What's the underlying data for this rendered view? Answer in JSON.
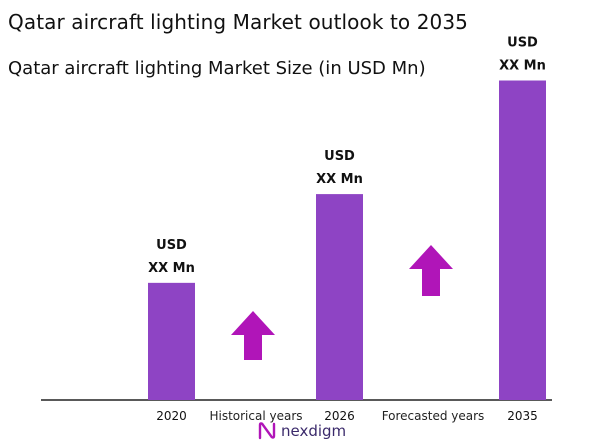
{
  "title": "Qatar aircraft lighting Market outlook to 2035",
  "subtitle": "Qatar aircraft lighting Market Size (in USD Mn)",
  "colors": {
    "bar": "#8e44c4",
    "arrow": "#b015b8",
    "axis": "#222222"
  },
  "chart_data": {
    "type": "bar",
    "title": "Qatar aircraft lighting Market Size (in USD Mn)",
    "categories": [
      "2020",
      "2026",
      "2035"
    ],
    "values": [
      33,
      58,
      90
    ],
    "data_labels": [
      [
        "USD",
        "XX Mn"
      ],
      [
        "USD",
        "XX Mn"
      ],
      [
        "USD",
        "XX Mn"
      ]
    ],
    "ylim": [
      0,
      100
    ],
    "grid": false,
    "legend": "none",
    "annotations": [
      {
        "label": "Historical years",
        "between": [
          "2020",
          "2026"
        ],
        "arrow": "up"
      },
      {
        "label": "Forecasted years",
        "between": [
          "2026",
          "2035"
        ],
        "arrow": "up"
      }
    ]
  },
  "logo": {
    "icon": "nexdigm-n-icon",
    "text": "nexdigm"
  }
}
